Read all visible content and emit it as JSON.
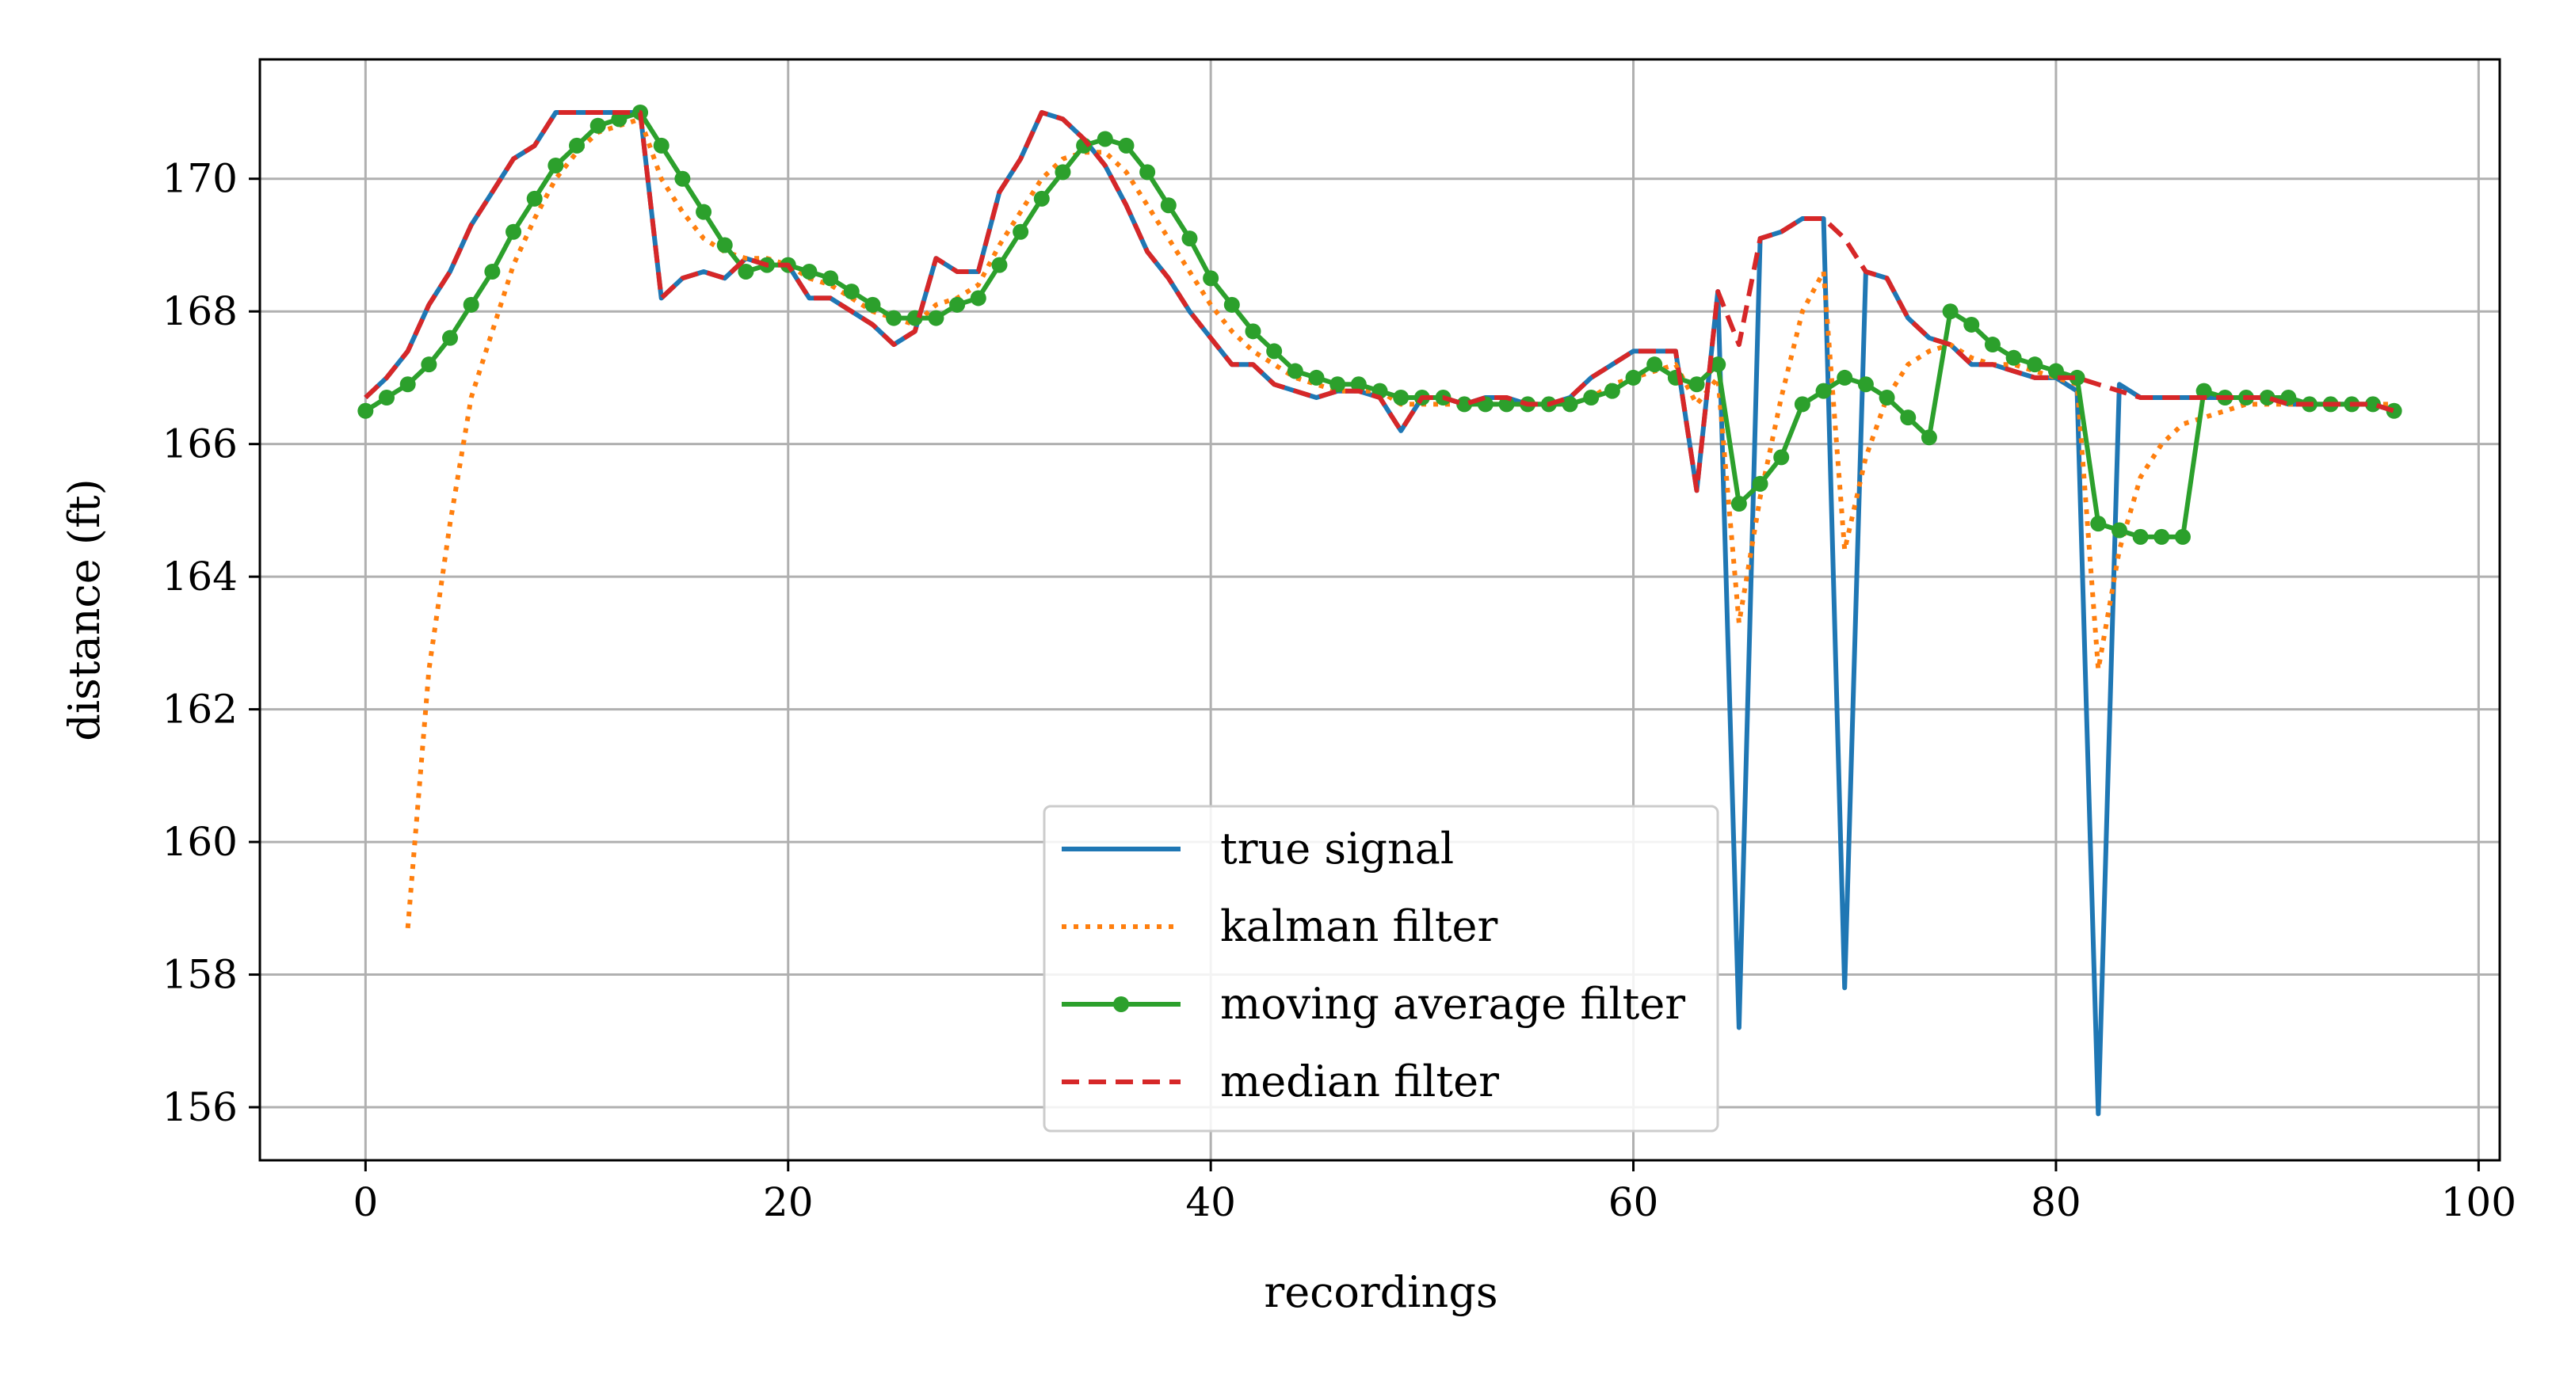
{
  "chart_data": {
    "type": "line",
    "title": "",
    "xlabel": "recordings",
    "ylabel": "distance (ft)",
    "xlim": [
      -5,
      101
    ],
    "ylim": [
      155.2,
      171.8
    ],
    "xticks": [
      0,
      20,
      40,
      60,
      80,
      100
    ],
    "yticks": [
      156,
      158,
      160,
      162,
      164,
      166,
      168,
      170
    ],
    "grid": true,
    "legend_position": "lower-center",
    "colors": {
      "true_signal": "#1f77b4",
      "kalman_filter": "#ff7f0e",
      "moving_average": "#2ca02c",
      "median_filter": "#d62728",
      "grid": "#b0b0b0"
    },
    "series": [
      {
        "name": "true signal",
        "style": "solid",
        "x": [
          0,
          1,
          2,
          3,
          4,
          5,
          6,
          7,
          8,
          9,
          10,
          11,
          12,
          13,
          14,
          15,
          16,
          17,
          18,
          19,
          20,
          21,
          22,
          23,
          24,
          25,
          26,
          27,
          28,
          29,
          30,
          31,
          32,
          33,
          34,
          35,
          36,
          37,
          38,
          39,
          40,
          41,
          42,
          43,
          44,
          45,
          46,
          47,
          48,
          49,
          50,
          51,
          52,
          53,
          54,
          55,
          56,
          57,
          58,
          59,
          60,
          61,
          62,
          63,
          64,
          65,
          66,
          67,
          68,
          69,
          70,
          71,
          72,
          73,
          74,
          75,
          76,
          77,
          78,
          79,
          80,
          81,
          82,
          83,
          84,
          85,
          86,
          87,
          88,
          89,
          90,
          91,
          92,
          93,
          94,
          95,
          96
        ],
        "y": [
          166.7,
          167.0,
          167.4,
          168.1,
          168.6,
          169.3,
          169.8,
          170.3,
          170.5,
          171.0,
          171.0,
          171.0,
          171.0,
          171.0,
          168.2,
          168.5,
          168.6,
          168.5,
          168.8,
          168.7,
          168.7,
          168.2,
          168.2,
          168.0,
          167.8,
          167.5,
          167.7,
          168.8,
          168.6,
          168.6,
          169.8,
          170.3,
          171.0,
          170.9,
          170.6,
          170.2,
          169.6,
          168.9,
          168.5,
          168.0,
          167.6,
          167.2,
          167.2,
          166.9,
          166.8,
          166.7,
          166.8,
          166.8,
          166.7,
          166.2,
          166.7,
          166.7,
          166.6,
          166.7,
          166.7,
          166.6,
          166.6,
          166.7,
          167.0,
          167.2,
          167.4,
          167.4,
          167.4,
          165.3,
          168.3,
          157.2,
          169.1,
          169.2,
          169.4,
          169.4,
          157.8,
          168.6,
          168.5,
          167.9,
          167.6,
          167.5,
          167.2,
          167.2,
          167.1,
          167.0,
          167.0,
          166.8,
          155.9,
          166.9,
          166.7,
          166.7,
          166.7,
          166.7,
          166.7,
          166.7,
          166.7,
          166.6,
          166.6,
          166.6,
          166.6,
          166.6,
          166.5
        ]
      },
      {
        "name": "kalman filter",
        "style": "dotted",
        "x": [
          2,
          3,
          4,
          5,
          6,
          7,
          8,
          9,
          10,
          11,
          12,
          13,
          14,
          15,
          16,
          17,
          18,
          19,
          20,
          21,
          22,
          23,
          24,
          25,
          26,
          27,
          28,
          29,
          30,
          31,
          32,
          33,
          34,
          35,
          36,
          37,
          38,
          39,
          40,
          41,
          42,
          43,
          44,
          45,
          46,
          47,
          48,
          49,
          50,
          51,
          52,
          53,
          54,
          55,
          56,
          57,
          58,
          59,
          60,
          61,
          62,
          63,
          64,
          65,
          66,
          67,
          68,
          69,
          70,
          71,
          72,
          73,
          74,
          75,
          76,
          77,
          78,
          79,
          80,
          81,
          82,
          83,
          84,
          85,
          86,
          87,
          88,
          89,
          90,
          91,
          92,
          93,
          94,
          95,
          96
        ],
        "y": [
          158.7,
          162.6,
          164.8,
          166.7,
          167.7,
          168.7,
          169.4,
          170.0,
          170.4,
          170.7,
          170.8,
          170.9,
          170.0,
          169.5,
          169.1,
          168.9,
          168.8,
          168.8,
          168.7,
          168.5,
          168.4,
          168.2,
          168.0,
          167.9,
          167.8,
          168.1,
          168.2,
          168.4,
          169.0,
          169.5,
          170.0,
          170.3,
          170.4,
          170.4,
          170.1,
          169.6,
          169.1,
          168.6,
          168.1,
          167.7,
          167.4,
          167.2,
          167.0,
          166.9,
          166.8,
          166.8,
          166.8,
          166.6,
          166.6,
          166.6,
          166.6,
          166.6,
          166.6,
          166.6,
          166.6,
          166.6,
          166.7,
          166.9,
          167.0,
          167.1,
          167.2,
          166.6,
          167.0,
          163.3,
          165.2,
          166.7,
          168.0,
          168.6,
          164.4,
          165.8,
          166.7,
          167.2,
          167.4,
          167.5,
          167.3,
          167.2,
          167.2,
          167.1,
          167.0,
          166.9,
          162.6,
          164.4,
          165.5,
          166.0,
          166.3,
          166.4,
          166.5,
          166.6,
          166.6,
          166.6,
          166.6,
          166.6,
          166.6,
          166.6,
          166.6
        ]
      },
      {
        "name": "moving average filter",
        "style": "solid-markers",
        "x": [
          0,
          1,
          2,
          3,
          4,
          5,
          6,
          7,
          8,
          9,
          10,
          11,
          12,
          13,
          14,
          15,
          16,
          17,
          18,
          19,
          20,
          21,
          22,
          23,
          24,
          25,
          26,
          27,
          28,
          29,
          30,
          31,
          32,
          33,
          34,
          35,
          36,
          37,
          38,
          39,
          40,
          41,
          42,
          43,
          44,
          45,
          46,
          47,
          48,
          49,
          50,
          51,
          52,
          53,
          54,
          55,
          56,
          57,
          58,
          59,
          60,
          61,
          62,
          63,
          64,
          65,
          66,
          67,
          68,
          69,
          70,
          71,
          72,
          73,
          74,
          75,
          76,
          77,
          78,
          79,
          80,
          81,
          82,
          83,
          84,
          85,
          86,
          87,
          88,
          89,
          90,
          91,
          92,
          93,
          94,
          95,
          96
        ],
        "y": [
          166.5,
          166.7,
          166.9,
          167.2,
          167.6,
          168.1,
          168.6,
          169.2,
          169.7,
          170.2,
          170.5,
          170.8,
          170.9,
          171.0,
          170.5,
          170.0,
          169.5,
          169.0,
          168.6,
          168.7,
          168.7,
          168.6,
          168.5,
          168.3,
          168.1,
          167.9,
          167.9,
          167.9,
          168.1,
          168.2,
          168.7,
          169.2,
          169.7,
          170.1,
          170.5,
          170.6,
          170.5,
          170.1,
          169.6,
          169.1,
          168.5,
          168.1,
          167.7,
          167.4,
          167.1,
          167.0,
          166.9,
          166.9,
          166.8,
          166.7,
          166.7,
          166.7,
          166.6,
          166.6,
          166.6,
          166.6,
          166.6,
          166.6,
          166.7,
          166.8,
          167.0,
          167.2,
          167.0,
          166.9,
          167.2,
          165.1,
          165.4,
          165.8,
          166.6,
          166.8,
          167.0,
          166.9,
          166.7,
          166.4,
          166.1,
          168.0,
          167.8,
          167.5,
          167.3,
          167.2,
          167.1,
          167.0,
          164.8,
          164.7,
          164.6,
          164.6,
          164.6,
          166.8,
          166.7,
          166.7,
          166.7,
          166.7,
          166.6,
          166.6,
          166.6,
          166.6,
          166.5
        ]
      },
      {
        "name": "median filter",
        "style": "dashed",
        "x": [
          0,
          1,
          2,
          3,
          4,
          5,
          6,
          7,
          8,
          9,
          10,
          11,
          12,
          13,
          14,
          15,
          16,
          17,
          18,
          19,
          20,
          21,
          22,
          23,
          24,
          25,
          26,
          27,
          28,
          29,
          30,
          31,
          32,
          33,
          34,
          35,
          36,
          37,
          38,
          39,
          40,
          41,
          42,
          43,
          44,
          45,
          46,
          47,
          48,
          49,
          50,
          51,
          52,
          53,
          54,
          55,
          56,
          57,
          58,
          59,
          60,
          61,
          62,
          63,
          64,
          65,
          66,
          67,
          68,
          69,
          70,
          71,
          72,
          73,
          74,
          75,
          76,
          77,
          78,
          79,
          80,
          81,
          82,
          83,
          84,
          85,
          86,
          87,
          88,
          89,
          90,
          91,
          92,
          93,
          94,
          95,
          96
        ],
        "y": [
          166.7,
          167.0,
          167.4,
          168.1,
          168.6,
          169.3,
          169.8,
          170.3,
          170.5,
          171.0,
          171.0,
          171.0,
          171.0,
          171.0,
          168.2,
          168.5,
          168.6,
          168.5,
          168.8,
          168.7,
          168.7,
          168.2,
          168.2,
          168.0,
          167.8,
          167.5,
          167.7,
          168.8,
          168.6,
          168.6,
          169.8,
          170.3,
          171.0,
          170.9,
          170.6,
          170.2,
          169.6,
          168.9,
          168.5,
          168.0,
          167.6,
          167.2,
          167.2,
          166.9,
          166.8,
          166.7,
          166.8,
          166.8,
          166.7,
          166.2,
          166.7,
          166.7,
          166.6,
          166.7,
          166.7,
          166.6,
          166.6,
          166.7,
          167.0,
          167.2,
          167.4,
          167.4,
          167.4,
          165.3,
          168.3,
          167.5,
          169.1,
          169.2,
          169.4,
          169.4,
          169.1,
          168.6,
          168.5,
          167.9,
          167.6,
          167.5,
          167.2,
          167.2,
          167.1,
          167.0,
          167.0,
          167.0,
          166.9,
          166.8,
          166.7,
          166.7,
          166.7,
          166.7,
          166.7,
          166.7,
          166.7,
          166.6,
          166.6,
          166.6,
          166.6,
          166.6,
          166.5
        ]
      }
    ]
  }
}
